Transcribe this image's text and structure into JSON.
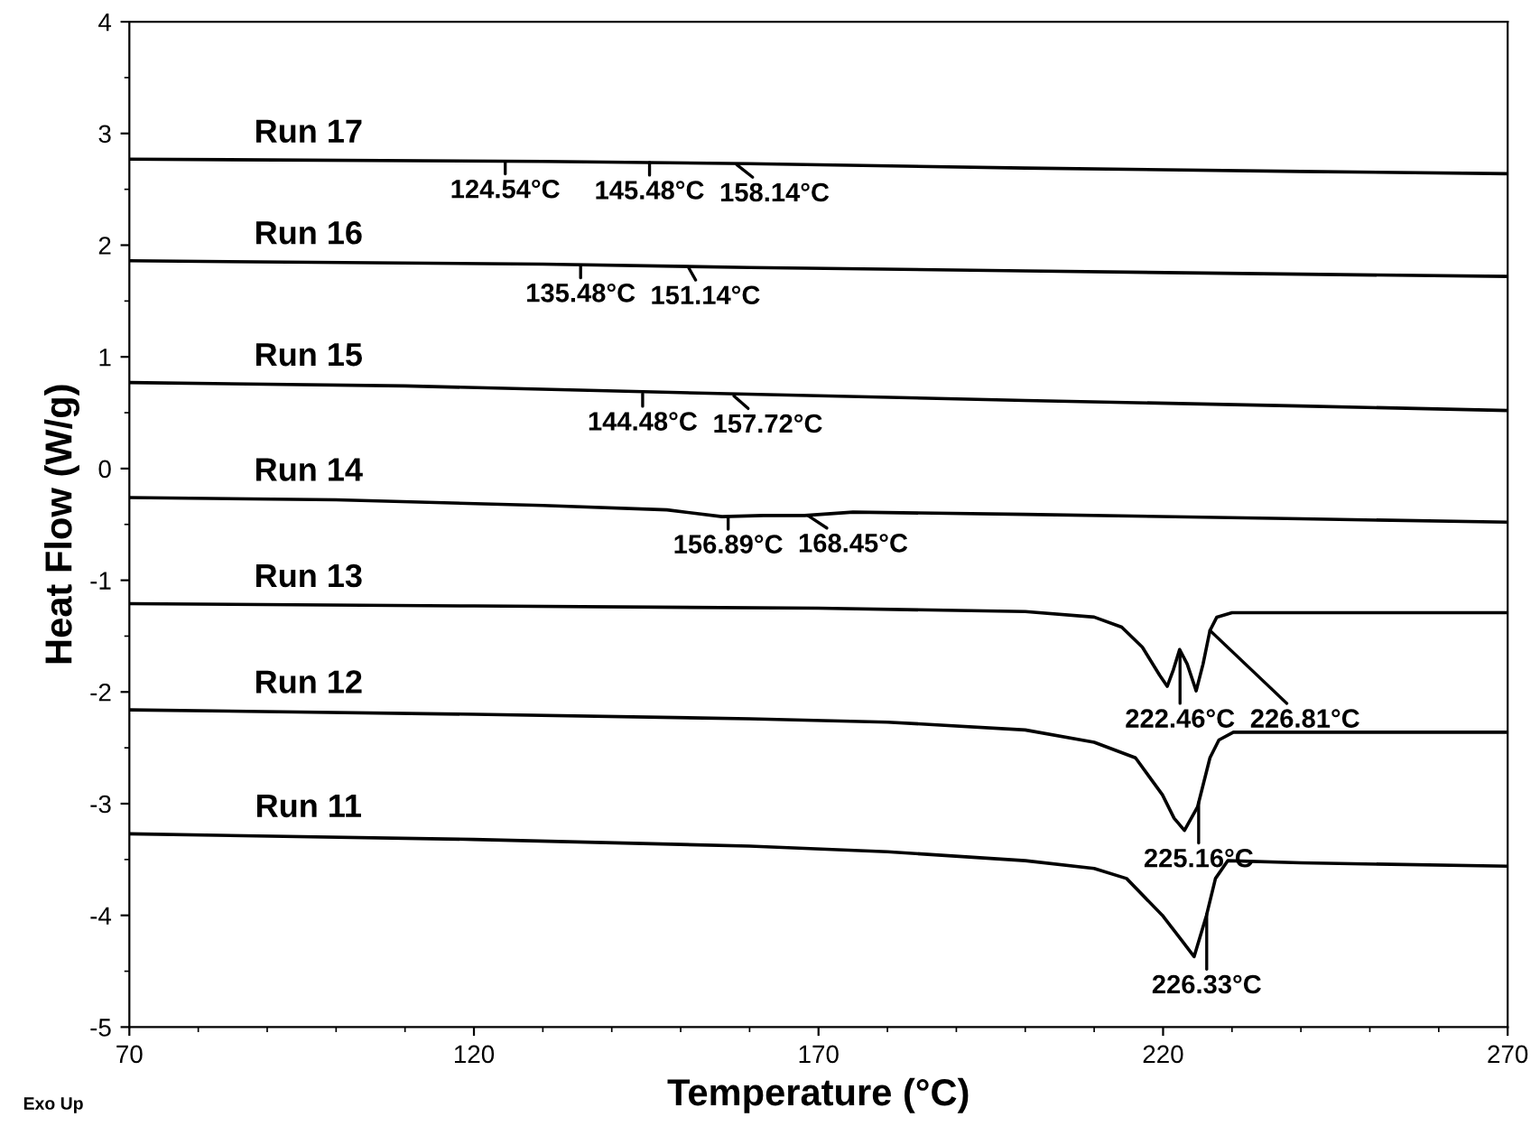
{
  "chart_data": {
    "type": "line",
    "xlabel": "Temperature (°C)",
    "ylabel": "Heat Flow (W/g)",
    "xlim": [
      70,
      270
    ],
    "ylim": [
      -5,
      4
    ],
    "xticks": [
      70,
      120,
      170,
      220,
      270
    ],
    "yticks": [
      -5,
      -4,
      -3,
      -2,
      -1,
      0,
      1,
      2,
      3,
      4
    ],
    "grid": false,
    "legend": false,
    "marker": "none",
    "line_style": "solid",
    "series": [
      {
        "name": "Run 17",
        "color": "#000000",
        "x": [
          70,
          130,
          160,
          200,
          240,
          270
        ],
        "values": [
          2.77,
          2.75,
          2.73,
          2.69,
          2.66,
          2.64
        ]
      },
      {
        "name": "Run 16",
        "color": "#000000",
        "x": [
          70,
          130,
          160,
          200,
          240,
          270
        ],
        "values": [
          1.86,
          1.83,
          1.8,
          1.77,
          1.74,
          1.72
        ]
      },
      {
        "name": "Run 15",
        "color": "#000000",
        "x": [
          70,
          110,
          150,
          200,
          240,
          270
        ],
        "values": [
          0.77,
          0.74,
          0.68,
          0.61,
          0.56,
          0.52
        ]
      },
      {
        "name": "Run 14",
        "color": "#000000",
        "x": [
          70,
          100,
          130,
          148,
          156,
          162,
          168,
          175,
          200,
          240,
          270
        ],
        "values": [
          -0.26,
          -0.28,
          -0.33,
          -0.37,
          -0.43,
          -0.42,
          -0.42,
          -0.39,
          -0.41,
          -0.45,
          -0.48
        ]
      },
      {
        "name": "Run 13",
        "color": "#000000",
        "x": [
          70,
          120,
          170,
          200,
          210,
          214,
          217,
          219.5,
          220.6,
          221.5,
          222.4,
          223.5,
          224.8,
          225.8,
          226.8,
          227.8,
          230,
          270
        ],
        "values": [
          -1.21,
          -1.23,
          -1.25,
          -1.28,
          -1.33,
          -1.42,
          -1.6,
          -1.85,
          -1.95,
          -1.8,
          -1.62,
          -1.75,
          -1.99,
          -1.75,
          -1.45,
          -1.33,
          -1.29,
          -1.29
        ]
      },
      {
        "name": "Run 12",
        "color": "#000000",
        "x": [
          70,
          120,
          160,
          180,
          200,
          210,
          216,
          219.9,
          221.6,
          223.1,
          225,
          226.8,
          228.1,
          230.2,
          270
        ],
        "values": [
          -2.16,
          -2.2,
          -2.24,
          -2.27,
          -2.34,
          -2.45,
          -2.59,
          -2.92,
          -3.13,
          -3.24,
          -3.03,
          -2.59,
          -2.43,
          -2.36,
          -2.36
        ]
      },
      {
        "name": "Run 11",
        "color": "#000000",
        "x": [
          70,
          120,
          160,
          180,
          200,
          210,
          214.7,
          219.9,
          222.4,
          224.5,
          226.3,
          227.6,
          229.4,
          240,
          270
        ],
        "values": [
          -3.27,
          -3.32,
          -3.38,
          -3.43,
          -3.51,
          -3.58,
          -3.67,
          -4.0,
          -4.2,
          -4.37,
          -4.0,
          -3.67,
          -3.51,
          -3.53,
          -3.56
        ]
      }
    ],
    "annotations": [
      {
        "text": "124.54°C",
        "x": 124.54,
        "y": 2.75
      },
      {
        "text": "145.48°C",
        "x": 145.48,
        "y": 2.74
      },
      {
        "text": "158.14°C",
        "x": 158.14,
        "y": 2.72
      },
      {
        "text": "135.48°C",
        "x": 135.48,
        "y": 1.82
      },
      {
        "text": "151.14°C",
        "x": 151.14,
        "y": 1.8
      },
      {
        "text": "144.48°C",
        "x": 144.48,
        "y": 0.67
      },
      {
        "text": "157.72°C",
        "x": 157.72,
        "y": 0.65
      },
      {
        "text": "156.89°C",
        "x": 156.89,
        "y": -0.43
      },
      {
        "text": "168.45°C",
        "x": 168.45,
        "y": -0.42
      },
      {
        "text": "222.46°C",
        "x": 222.46,
        "y": -1.63
      },
      {
        "text": "226.81°C",
        "x": 226.81,
        "y": -1.45
      },
      {
        "text": "225.16°C",
        "x": 225.16,
        "y": -2.99
      },
      {
        "text": "226.33°C",
        "x": 226.33,
        "y": -3.99
      },
      "Exo Up"
    ]
  }
}
